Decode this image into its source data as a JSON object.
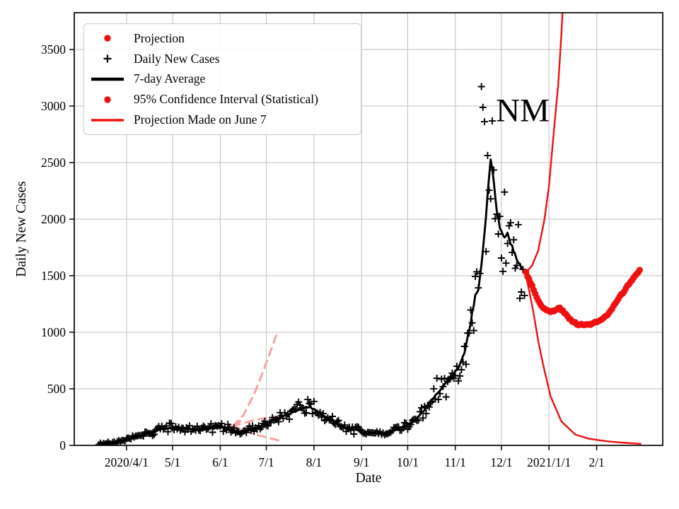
{
  "chart_data": {
    "type": "line+scatter",
    "title": "",
    "xlabel": "Date",
    "ylabel": "Daily New Cases",
    "annotation": {
      "text": "NM",
      "x": "2020-12-15",
      "y": 2950
    },
    "colors": {
      "red": "#ee1111",
      "black": "#000000",
      "pink": "#f7a3a3",
      "grid": "#c9c9c9"
    },
    "xlim": [
      "2020-02-27",
      "2021-03-16"
    ],
    "ylim": [
      0,
      3825
    ],
    "grid": true,
    "legend_position": "upper left",
    "x_ticks": [
      {
        "date": "2020-04-01",
        "label": "2020/4/1"
      },
      {
        "date": "2020-05-01",
        "label": "5/1"
      },
      {
        "date": "2020-06-01",
        "label": "6/1"
      },
      {
        "date": "2020-07-01",
        "label": "7/1"
      },
      {
        "date": "2020-08-01",
        "label": "8/1"
      },
      {
        "date": "2020-09-01",
        "label": "9/1"
      },
      {
        "date": "2020-10-01",
        "label": "10/1"
      },
      {
        "date": "2020-11-01",
        "label": "11/1"
      },
      {
        "date": "2020-12-01",
        "label": "12/1"
      },
      {
        "date": "2021-01-01",
        "label": "2021/1/1"
      },
      {
        "date": "2021-02-01",
        "label": "2/1"
      }
    ],
    "y_ticks": [
      0,
      500,
      1000,
      1500,
      2000,
      2500,
      3000,
      3500
    ],
    "legend": [
      {
        "label": "Projection",
        "marker": "red-dot"
      },
      {
        "label": "Daily New Cases",
        "marker": "black-plus"
      },
      {
        "label": "7-day Average",
        "marker": "black-line"
      },
      {
        "label": "95% Confidence Interval (Statistical)",
        "marker": "red-dot"
      },
      {
        "label": "Projection Made on June 7",
        "marker": "red-line"
      }
    ],
    "series": {
      "daily": {
        "name": "Daily New Cases",
        "marker": "plus",
        "range": [
          "2020-03-14",
          "2020-12-16"
        ],
        "jitter": {
          "seed": 9,
          "rel": 0.3,
          "abs": 12
        },
        "outliers": {
          "2020-11-18": 3172,
          "2020-11-19": 2988,
          "2020-11-20": 2862,
          "2020-11-22": 2563
        }
      },
      "avg7": {
        "name": "7-day Average",
        "points": [
          [
            "2020-03-17",
            14
          ],
          [
            "2020-03-23",
            24
          ],
          [
            "2020-03-29",
            38
          ],
          [
            "2020-04-05",
            62
          ],
          [
            "2020-04-12",
            96
          ],
          [
            "2020-04-19",
            126
          ],
          [
            "2020-04-26",
            150
          ],
          [
            "2020-05-03",
            158
          ],
          [
            "2020-05-10",
            148
          ],
          [
            "2020-05-17",
            139
          ],
          [
            "2020-05-24",
            149
          ],
          [
            "2020-05-31",
            162
          ],
          [
            "2020-06-05",
            152
          ],
          [
            "2020-06-10",
            128
          ],
          [
            "2020-06-15",
            116
          ],
          [
            "2020-06-21",
            139
          ],
          [
            "2020-06-28",
            173
          ],
          [
            "2020-07-05",
            221
          ],
          [
            "2020-07-12",
            259
          ],
          [
            "2020-07-19",
            296
          ],
          [
            "2020-07-26",
            334
          ],
          [
            "2020-07-29",
            339
          ],
          [
            "2020-08-04",
            296
          ],
          [
            "2020-08-11",
            229
          ],
          [
            "2020-08-18",
            173
          ],
          [
            "2020-08-25",
            149
          ],
          [
            "2020-09-01",
            128
          ],
          [
            "2020-09-08",
            109
          ],
          [
            "2020-09-15",
            102
          ],
          [
            "2020-09-22",
            132
          ],
          [
            "2020-09-29",
            168
          ],
          [
            "2020-10-06",
            226
          ],
          [
            "2020-10-13",
            331
          ],
          [
            "2020-10-20",
            456
          ],
          [
            "2020-10-27",
            572
          ],
          [
            "2020-11-03",
            682
          ],
          [
            "2020-11-07",
            822
          ],
          [
            "2020-11-11",
            1083
          ],
          [
            "2020-11-14",
            1331
          ],
          [
            "2020-11-16",
            1372
          ],
          [
            "2020-11-18",
            1583
          ],
          [
            "2020-11-21",
            2004
          ],
          [
            "2020-11-24",
            2541
          ],
          [
            "2020-11-26",
            2323
          ],
          [
            "2020-11-29",
            1992
          ],
          [
            "2020-12-02",
            1853
          ],
          [
            "2020-12-05",
            1866
          ],
          [
            "2020-12-08",
            1762
          ],
          [
            "2020-12-12",
            1621
          ],
          [
            "2020-12-16",
            1532
          ]
        ]
      },
      "projection": {
        "name": "Projection",
        "marker": "thick-red-dots",
        "points": [
          [
            "2020-12-17",
            1528
          ],
          [
            "2020-12-20",
            1442
          ],
          [
            "2020-12-23",
            1341
          ],
          [
            "2020-12-26",
            1256
          ],
          [
            "2020-12-29",
            1206
          ],
          [
            "2021-01-01",
            1181
          ],
          [
            "2021-01-05",
            1192
          ],
          [
            "2021-01-08",
            1216
          ],
          [
            "2021-01-11",
            1172
          ],
          [
            "2021-01-14",
            1121
          ],
          [
            "2021-01-17",
            1092
          ],
          [
            "2021-01-20",
            1071
          ],
          [
            "2021-01-24",
            1062
          ],
          [
            "2021-01-28",
            1073
          ],
          [
            "2021-02-01",
            1091
          ],
          [
            "2021-02-05",
            1116
          ],
          [
            "2021-02-09",
            1167
          ],
          [
            "2021-02-13",
            1247
          ],
          [
            "2021-02-17",
            1331
          ],
          [
            "2021-02-21",
            1407
          ],
          [
            "2021-02-25",
            1481
          ],
          [
            "2021-03-01",
            1546
          ]
        ]
      },
      "ci_upper": {
        "name": "95% Confidence Interval (Statistical) upper bound",
        "points": [
          [
            "2020-12-17",
            1528
          ],
          [
            "2020-12-21",
            1592
          ],
          [
            "2020-12-25",
            1724
          ],
          [
            "2020-12-29",
            1996
          ],
          [
            "2021-01-01",
            2293
          ],
          [
            "2021-01-03",
            2607
          ],
          [
            "2021-01-05",
            2903
          ],
          [
            "2021-01-07",
            3192
          ],
          [
            "2021-01-09",
            3622
          ],
          [
            "2021-01-11",
            4150
          ]
        ]
      },
      "ci_lower": {
        "name": "95% Confidence Interval (Statistical) lower bound",
        "points": [
          [
            "2020-12-17",
            1498
          ],
          [
            "2020-12-19",
            1372
          ],
          [
            "2020-12-22",
            1163
          ],
          [
            "2020-12-25",
            924
          ],
          [
            "2020-12-28",
            722
          ],
          [
            "2021-01-02",
            434
          ],
          [
            "2021-01-09",
            213
          ],
          [
            "2021-01-18",
            96
          ],
          [
            "2021-01-27",
            58
          ],
          [
            "2021-02-09",
            34
          ],
          [
            "2021-02-20",
            22
          ],
          [
            "2021-03-02",
            14
          ]
        ]
      },
      "june7": {
        "name": "Projection Made on June 7",
        "style": "dashed-faded",
        "branches": [
          [
            [
              "2020-06-09",
              170
            ],
            [
              "2020-06-16",
              265
            ],
            [
              "2020-06-23",
              452
            ],
            [
              "2020-06-28",
              622
            ],
            [
              "2020-07-03",
              803
            ],
            [
              "2020-07-07",
              956
            ],
            [
              "2020-07-09",
              1012
            ]
          ],
          [
            [
              "2020-06-09",
              170
            ],
            [
              "2020-06-24",
              226
            ],
            [
              "2020-07-11",
              262
            ]
          ],
          [
            [
              "2020-06-09",
              170
            ],
            [
              "2020-06-24",
              96
            ],
            [
              "2020-07-10",
              40
            ]
          ]
        ]
      }
    }
  }
}
